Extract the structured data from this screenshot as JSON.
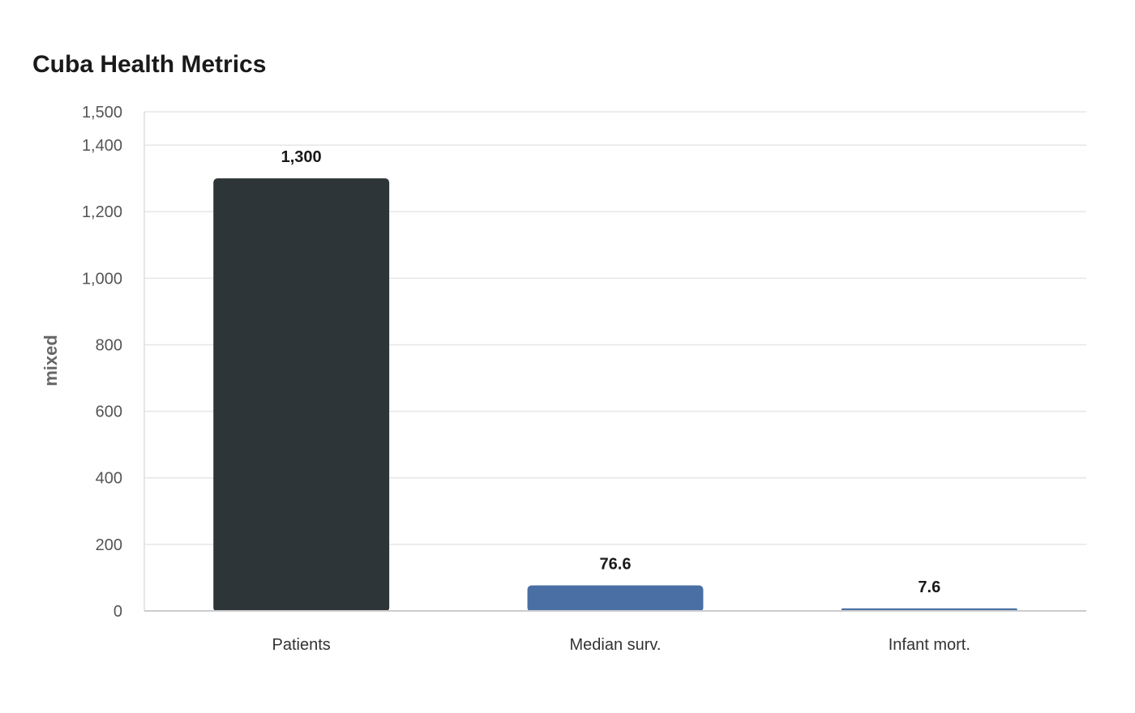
{
  "chart_data": {
    "type": "bar",
    "title": "Cuba Health Metrics",
    "xlabel": "",
    "ylabel": "mixed",
    "categories": [
      "Patients",
      "Median surv.",
      "Infant mort."
    ],
    "values": [
      1300,
      76.6,
      7.6
    ],
    "value_labels": [
      "1,300",
      "76.6",
      "7.6"
    ],
    "ylim": [
      0,
      1500
    ],
    "yticks": [
      0,
      200,
      400,
      600,
      800,
      1000,
      1200,
      1400,
      1500
    ],
    "ytick_labels": [
      "0",
      "200",
      "400",
      "600",
      "800",
      "1,000",
      "1,200",
      "1,400",
      "1,500"
    ],
    "bar_colors": [
      "#2e3538",
      "#4a6fa5",
      "#4a6fa5"
    ],
    "grid": true,
    "legend": "none"
  }
}
